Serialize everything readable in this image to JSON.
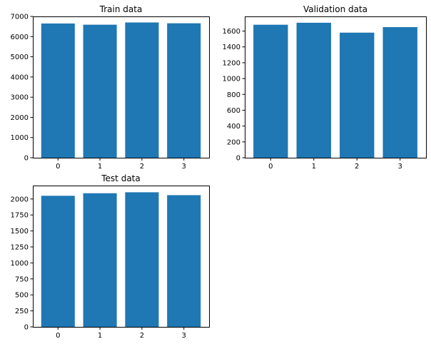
{
  "colors": {
    "bar": "#1f77b4",
    "axis": "#000000",
    "background": "#ffffff"
  },
  "chart_data": [
    {
      "type": "bar",
      "title": "Train data",
      "categories": [
        "0",
        "1",
        "2",
        "3"
      ],
      "values": [
        6650,
        6590,
        6700,
        6660
      ],
      "xlabel": "",
      "ylabel": "",
      "ylim": [
        0,
        7000
      ],
      "yticks": [
        0,
        1000,
        2000,
        3000,
        4000,
        5000,
        6000,
        7000
      ],
      "grid": false
    },
    {
      "type": "bar",
      "title": "Validation data",
      "categories": [
        "0",
        "1",
        "2",
        "3"
      ],
      "values": [
        1680,
        1705,
        1580,
        1650
      ],
      "xlabel": "",
      "ylabel": "",
      "ylim": [
        0,
        1785
      ],
      "yticks": [
        0,
        200,
        400,
        600,
        800,
        1000,
        1200,
        1400,
        1600
      ],
      "grid": false
    },
    {
      "type": "bar",
      "title": "Test data",
      "categories": [
        "0",
        "1",
        "2",
        "3"
      ],
      "values": [
        2050,
        2090,
        2105,
        2060
      ],
      "xlabel": "",
      "ylabel": "",
      "ylim": [
        0,
        2210
      ],
      "yticks": [
        0,
        250,
        500,
        750,
        1000,
        1250,
        1500,
        1750,
        2000
      ],
      "grid": false
    }
  ]
}
